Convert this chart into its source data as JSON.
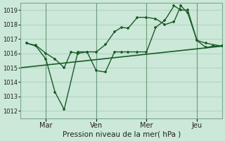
{
  "background_color": "#cce8d8",
  "grid_color": "#aacebb",
  "line_color": "#1a5c28",
  "xlabel": "Pression niveau de la mer( hPa )",
  "ylim": [
    1011.5,
    1019.5
  ],
  "yticks": [
    1012,
    1013,
    1014,
    1015,
    1016,
    1017,
    1018,
    1019
  ],
  "day_labels": [
    "Mar",
    "Ven",
    "Mer",
    "Jeu"
  ],
  "day_positions": [
    33,
    99,
    165,
    231
  ],
  "xlim": [
    0,
    264
  ],
  "line1_x": [
    8,
    20,
    33,
    45,
    57,
    66,
    75,
    87,
    99,
    111,
    123,
    132,
    141,
    153,
    165,
    177,
    189,
    201,
    210,
    219,
    231,
    243,
    252,
    264
  ],
  "line1_y": [
    1016.7,
    1016.55,
    1016.0,
    1015.6,
    1015.0,
    1016.1,
    1016.0,
    1016.1,
    1016.1,
    1016.6,
    1017.5,
    1017.8,
    1017.75,
    1018.5,
    1018.5,
    1018.4,
    1018.0,
    1018.2,
    1019.3,
    1018.8,
    1016.9,
    1016.4,
    1016.5,
    1016.5
  ],
  "line2_x": [
    8,
    20,
    33,
    45,
    57,
    75,
    87,
    99,
    111,
    123,
    132,
    141,
    153,
    165,
    177,
    189,
    201,
    210,
    219,
    231,
    243,
    264
  ],
  "line2_y": [
    1016.7,
    1016.5,
    1015.6,
    1013.3,
    1012.1,
    1016.1,
    1016.1,
    1014.8,
    1014.7,
    1016.1,
    1016.1,
    1016.1,
    1016.1,
    1016.1,
    1017.8,
    1018.3,
    1019.3,
    1019.0,
    1019.0,
    1016.9,
    1016.7,
    1016.5
  ],
  "line3_x": [
    0,
    264
  ],
  "line3_y": [
    1015.0,
    1016.5
  ],
  "vline_positions": [
    33,
    99,
    165,
    231
  ],
  "vline_color": "#6a9a7a"
}
